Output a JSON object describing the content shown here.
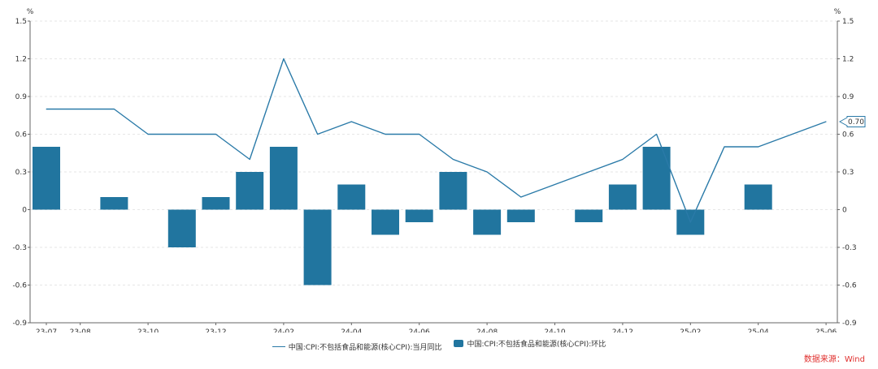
{
  "source_label": "数据来源：Wind",
  "chart_data": {
    "type": "bar",
    "y_unit_left": "%",
    "y_unit_right": "%",
    "ylim": [
      -0.9,
      1.5
    ],
    "yticks": [
      "1.5",
      "1.2",
      "0.9",
      "0.6",
      "0.3",
      "0",
      "-0.3",
      "-0.6",
      "-0.9"
    ],
    "xtick_labels": [
      "23-07",
      "23-08",
      "23-10",
      "23-12",
      "24-02",
      "24-04",
      "24-06",
      "24-08",
      "24-10",
      "24-12",
      "25-02",
      "25-04",
      "25-06"
    ],
    "grid": true,
    "legend_position": "bottom",
    "last_value_label": "0.70",
    "categories": [
      "23-07",
      "23-08",
      "23-09",
      "23-10",
      "23-11",
      "23-12",
      "24-01",
      "24-02",
      "24-03",
      "24-04",
      "24-05",
      "24-06",
      "24-07",
      "24-08",
      "24-09",
      "24-10",
      "24-11",
      "24-12",
      "25-01",
      "25-02",
      "25-03",
      "25-04",
      "25-05",
      "25-06"
    ],
    "series": [
      {
        "name": "中国:CPI:不包括食品和能源(核心CPI):当月同比",
        "kind": "line",
        "color": "#2a7aa8",
        "values": [
          0.8,
          0.8,
          0.8,
          0.6,
          0.6,
          0.6,
          0.4,
          1.2,
          0.6,
          0.7,
          0.6,
          0.6,
          0.4,
          0.3,
          0.1,
          0.2,
          0.3,
          0.4,
          0.6,
          -0.1,
          0.5,
          0.5,
          0.6,
          0.7
        ]
      },
      {
        "name": "中国:CPI:不包括食品和能源(核心CPI):环比",
        "kind": "bar",
        "color": "#21759f",
        "values": [
          0.5,
          null,
          0.1,
          null,
          -0.3,
          0.1,
          0.3,
          0.5,
          -0.6,
          0.2,
          -0.2,
          -0.1,
          0.3,
          -0.2,
          -0.1,
          null,
          -0.1,
          0.2,
          0.5,
          -0.2,
          null,
          0.2,
          null,
          null
        ]
      }
    ]
  }
}
